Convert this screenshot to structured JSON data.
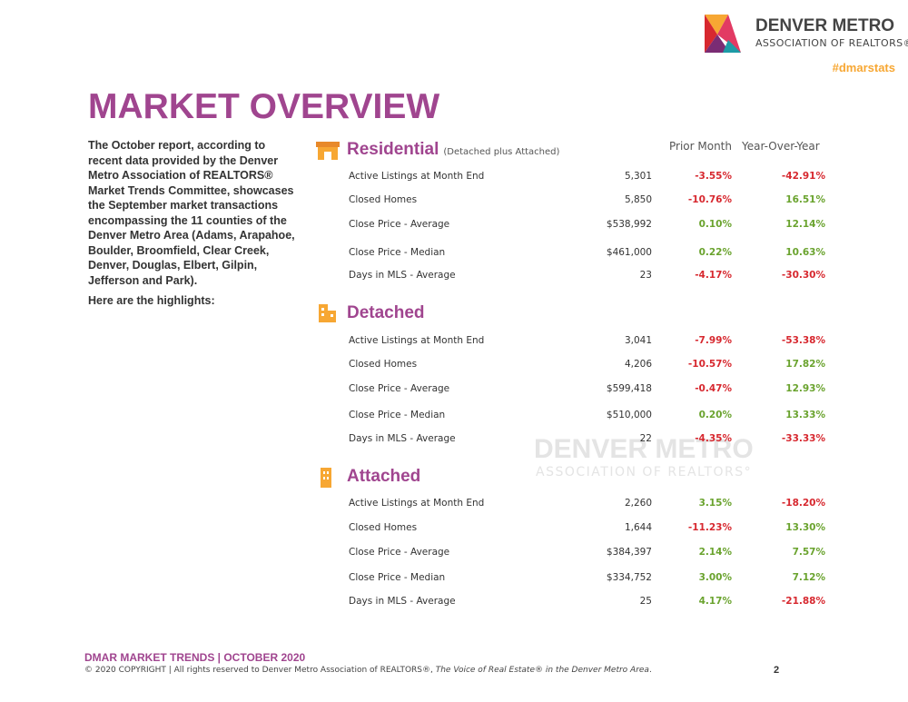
{
  "header": {
    "logo_line1": "DENVER METRO",
    "logo_line2": "ASSOCIATION OF REALTORS®",
    "hashtag": "#dmarstats"
  },
  "title": "MARKET OVERVIEW",
  "intro": [
    "The October report, according to recent data provided by the Denver Metro Association of REALTORS® Market Trends Committee, showcases the September market transactions encompassing the 11 counties of the Denver Metro Area (Adams, Arapahoe, Boulder, Broomfield, Clear Creek, Denver, Douglas, Elbert, Gilpin, Jefferson and Park).",
    "Here are the highlights:"
  ],
  "column_headers": [
    "Prior Month",
    "Year-Over-Year"
  ],
  "sections": [
    {
      "title": "Residential",
      "subtitle": "(Detached plus Attached)",
      "rows": [
        [
          "Active Listings at Month End",
          "5,301",
          "-3.55%",
          "-42.91%"
        ],
        [
          "Closed Homes",
          "5,850",
          "-10.76%",
          "16.51%"
        ],
        [
          "Close Price - Average",
          "$538,992",
          "0.10%",
          "12.14%"
        ],
        [
          "Close Price - Median",
          "$461,000",
          "0.22%",
          "10.63%"
        ],
        [
          "Days in MLS - Average",
          "23",
          "-4.17%",
          "-30.30%"
        ]
      ]
    },
    {
      "title": "Detached",
      "rows": [
        [
          "Active Listings at Month End",
          "3,041",
          "-7.99%",
          "-53.38%"
        ],
        [
          "Closed Homes",
          "4,206",
          "-10.57%",
          "17.82%"
        ],
        [
          "Close Price - Average",
          "$599,418",
          "-0.47%",
          "12.93%"
        ],
        [
          "Close Price - Median",
          "$510,000",
          "0.20%",
          "13.33%"
        ],
        [
          "Days in MLS - Average",
          "22",
          "-4.35%",
          "-33.33%"
        ]
      ]
    },
    {
      "title": "Attached",
      "rows": [
        [
          "Active Listings at Month End",
          "2,260",
          "3.15%",
          "-18.20%"
        ],
        [
          "Closed Homes",
          "1,644",
          "-11.23%",
          "13.30%"
        ],
        [
          "Close Price - Average",
          "$384,397",
          "2.14%",
          "7.57%"
        ],
        [
          "Close Price - Median",
          "$334,752",
          "3.00%",
          "7.12%"
        ],
        [
          "Days in MLS - Average",
          "25",
          "4.17%",
          "-21.88%"
        ]
      ]
    }
  ],
  "watermark": {
    "line1": "DENVER METRO",
    "line2": "ASSOCIATION OF REALTORS°"
  },
  "footer": {
    "title": "DMAR MARKET TRENDS | OCTOBER 2020",
    "copyright": "© 2020 COPYRIGHT | All rights reserved to Denver Metro Association of REALTORS®, ",
    "tagline": "The Voice of Real Estate® in the Denver Metro Area",
    "end": ".",
    "page": "2"
  }
}
